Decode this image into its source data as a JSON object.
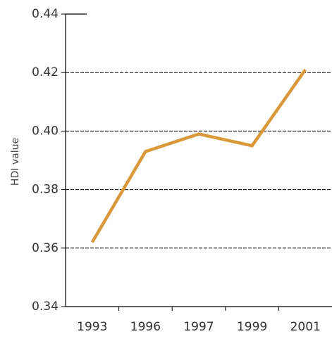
{
  "chart_data": {
    "type": "line",
    "y_label": "HDI value",
    "categories": [
      "1993",
      "1996",
      "1997",
      "1999",
      "2001"
    ],
    "series": [
      {
        "name": "HDI",
        "color": "#d9993a",
        "values": [
          0.362,
          0.393,
          0.399,
          0.395,
          0.421
        ]
      }
    ],
    "ylim": [
      0.34,
      0.44
    ],
    "yticks": [
      0.34,
      0.36,
      0.38,
      {
        "value": 0.4,
        "label": "0.40"
      },
      0.42,
      0.44
    ],
    "grid": true
  }
}
